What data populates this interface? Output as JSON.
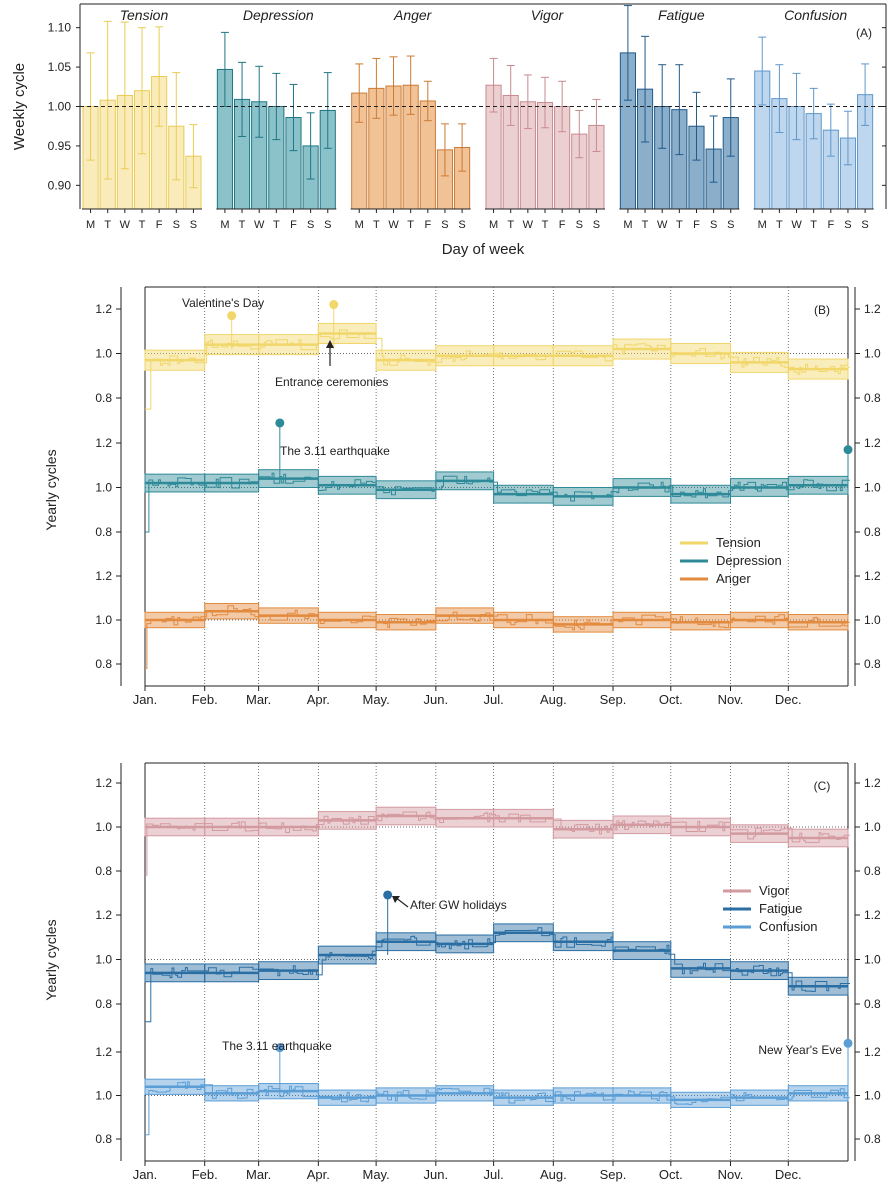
{
  "chart_data": [
    {
      "id": "A",
      "type": "bar",
      "panel_label": "(A)",
      "ylabel": "Weekly cycle",
      "xlabel": "Day of week",
      "ylim": [
        0.87,
        1.13
      ],
      "yticks": [
        0.9,
        0.95,
        1.0,
        1.05,
        1.1
      ],
      "reference_line": 1.0,
      "days": [
        "M",
        "T",
        "W",
        "T",
        "F",
        "S",
        "S"
      ],
      "series": [
        {
          "name": "Tension",
          "color": "#f6e08c",
          "edge": "#e8cc55",
          "values": [
            1.0,
            1.008,
            1.014,
            1.02,
            1.038,
            0.975,
            0.937
          ],
          "errors": [
            0.068,
            0.1,
            0.093,
            0.08,
            0.063,
            0.068,
            0.04
          ]
        },
        {
          "name": "Depression",
          "color": "#3e9aa6",
          "edge": "#1f7683",
          "values": [
            1.047,
            1.009,
            1.006,
            1.0,
            0.986,
            0.95,
            0.995
          ],
          "errors": [
            0.047,
            0.047,
            0.045,
            0.042,
            0.042,
            0.042,
            0.048
          ]
        },
        {
          "name": "Anger",
          "color": "#e99a52",
          "edge": "#cc7a33",
          "values": [
            1.017,
            1.023,
            1.026,
            1.027,
            1.007,
            0.945,
            0.948
          ],
          "errors": [
            0.037,
            0.038,
            0.037,
            0.037,
            0.025,
            0.033,
            0.03
          ]
        },
        {
          "name": "Vigor",
          "color": "#dfb0b3",
          "edge": "#c78a8f",
          "values": [
            1.027,
            1.014,
            1.006,
            1.005,
            1.0,
            0.965,
            0.976
          ],
          "errors": [
            0.034,
            0.038,
            0.034,
            0.032,
            0.032,
            0.03,
            0.033
          ]
        },
        {
          "name": "Fatigue",
          "color": "#3d78a8",
          "edge": "#205a8a",
          "values": [
            1.068,
            1.022,
            1.0,
            0.996,
            0.975,
            0.946,
            0.986
          ],
          "errors": [
            0.06,
            0.067,
            0.053,
            0.057,
            0.043,
            0.042,
            0.049
          ]
        },
        {
          "name": "Confusion",
          "color": "#93bde3",
          "edge": "#5f97cb",
          "values": [
            1.045,
            1.01,
            1.0,
            0.991,
            0.97,
            0.96,
            1.015
          ],
          "errors": [
            0.043,
            0.043,
            0.042,
            0.032,
            0.033,
            0.034,
            0.039
          ]
        }
      ]
    },
    {
      "id": "B",
      "type": "line",
      "panel_label": "(B)",
      "ylabel": "Yearly cycles",
      "months": [
        "Jan.",
        "Feb.",
        "Mar.",
        "Apr.",
        "May.",
        "Jun.",
        "Jul.",
        "Aug.",
        "Sep.",
        "Oct.",
        "Nov.",
        "Dec."
      ],
      "yticks": [
        0.8,
        1.0,
        1.2
      ],
      "legend_position": "center-right",
      "series": [
        {
          "name": "Tension",
          "color": "#f1d66a",
          "monthly_means": [
            0.97,
            1.04,
            1.04,
            1.09,
            0.97,
            0.99,
            0.99,
            0.99,
            1.02,
            1.0,
            0.96,
            0.93
          ],
          "band_halfwidth": 0.045,
          "annotations": [
            {
              "text": "Valentine's Day",
              "day": 45,
              "value": 1.17
            },
            {
              "text": "Entrance ceremonies",
              "day": 98,
              "value": 1.22
            }
          ]
        },
        {
          "name": "Depression",
          "color": "#2e8a98",
          "monthly_means": [
            1.02,
            1.02,
            1.04,
            1.01,
            0.99,
            1.03,
            0.97,
            0.96,
            1.0,
            0.97,
            1.0,
            1.01
          ],
          "band_halfwidth": 0.04,
          "annotations": [
            {
              "text": "The 3.11 earthquake",
              "day": 70,
              "value": 1.29
            },
            {
              "text": "",
              "day": 365,
              "value": 1.17
            }
          ]
        },
        {
          "name": "Anger",
          "color": "#e28a3e",
          "monthly_means": [
            1.0,
            1.04,
            1.02,
            1.0,
            0.99,
            1.02,
            1.0,
            0.98,
            1.0,
            0.99,
            1.0,
            0.99
          ],
          "band_halfwidth": 0.035,
          "annotations": []
        }
      ]
    },
    {
      "id": "C",
      "type": "line",
      "panel_label": "(C)",
      "ylabel": "Yearly cycles",
      "months": [
        "Jan.",
        "Feb.",
        "Mar.",
        "Apr.",
        "May.",
        "Jun.",
        "Jul.",
        "Aug.",
        "Sep.",
        "Oct.",
        "Nov.",
        "Dec."
      ],
      "yticks": [
        0.8,
        1.0,
        1.2
      ],
      "legend_position": "right",
      "series": [
        {
          "name": "Vigor",
          "color": "#d39aa0",
          "monthly_means": [
            1.0,
            1.0,
            1.0,
            1.03,
            1.05,
            1.04,
            1.04,
            0.99,
            1.01,
            1.0,
            0.97,
            0.95
          ],
          "band_halfwidth": 0.04,
          "annotations": []
        },
        {
          "name": "Fatigue",
          "color": "#2a6ea3",
          "monthly_means": [
            0.94,
            0.94,
            0.95,
            1.02,
            1.08,
            1.07,
            1.12,
            1.08,
            1.04,
            0.96,
            0.95,
            0.88
          ],
          "band_halfwidth": 0.04,
          "annotations": [
            {
              "text": "After GW holidays",
              "day": 126,
              "value": 1.29
            }
          ]
        },
        {
          "name": "Confusion",
          "color": "#5b9ed6",
          "monthly_means": [
            1.04,
            1.01,
            1.02,
            0.99,
            1.0,
            1.01,
            0.99,
            1.0,
            1.0,
            0.98,
            0.99,
            1.01
          ],
          "band_halfwidth": 0.035,
          "annotations": [
            {
              "text": "The 3.11 earthquake",
              "day": 70,
              "value": 1.22
            },
            {
              "text": "New Year's Eve",
              "day": 365,
              "value": 1.24
            }
          ]
        }
      ]
    }
  ]
}
